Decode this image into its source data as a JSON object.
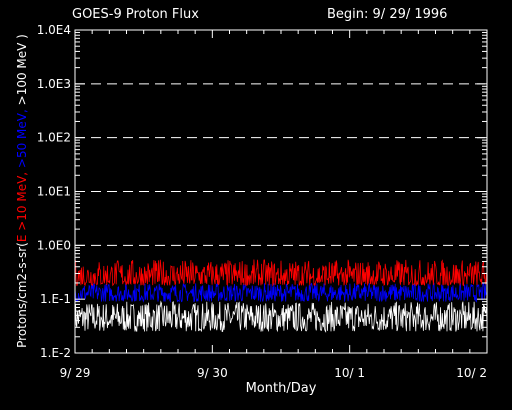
{
  "chart_data": {
    "type": "line",
    "title": "GOES-9 Proton Flux",
    "begin_label": "Begin: 9/ 29/ 1996",
    "xlabel": "Month/Day",
    "ylabel_parts": [
      {
        "text": "Protons/cm2-s-sr(",
        "color": "#ffffff"
      },
      {
        "text": "E >10 MeV, ",
        "color": "#ff0000"
      },
      {
        "text": ">50 MeV, ",
        "color": "#0000ff"
      },
      {
        "text": ">100 MeV )",
        "color": "#ffffff"
      }
    ],
    "y_scale": "log",
    "ylim": [
      0.01,
      10000
    ],
    "y_ticks": [
      {
        "value": 10000,
        "label": "1.0E4"
      },
      {
        "value": 1000,
        "label": "1.0E3"
      },
      {
        "value": 100,
        "label": "1.0E2"
      },
      {
        "value": 10,
        "label": "1.0E1"
      },
      {
        "value": 1,
        "label": "1.0E0"
      },
      {
        "value": 0.1,
        "label": "1.E-1"
      },
      {
        "value": 0.01,
        "label": "1.E-2"
      }
    ],
    "xlim": [
      "1996-09-29",
      "1996-10-02"
    ],
    "x_ticks": [
      {
        "value": "1996-09-29",
        "label": "9/ 29"
      },
      {
        "value": "1996-09-30",
        "label": "9/ 30"
      },
      {
        "value": "1996-10-01",
        "label": "10/ 1"
      },
      {
        "value": "1996-10-02",
        "label": "10/ 2"
      }
    ],
    "grid": "dashed horizontal at decades 1 through 1000",
    "series": [
      {
        "name": "E >10 MeV",
        "color": "#ff0000",
        "typical_range": [
          0.18,
          0.55
        ]
      },
      {
        "name": ">50 MeV",
        "color": "#0000ff",
        "typical_range": [
          0.09,
          0.2
        ]
      },
      {
        "name": ">100 MeV",
        "color": "#ffffff",
        "typical_range": [
          0.025,
          0.09
        ]
      }
    ]
  }
}
